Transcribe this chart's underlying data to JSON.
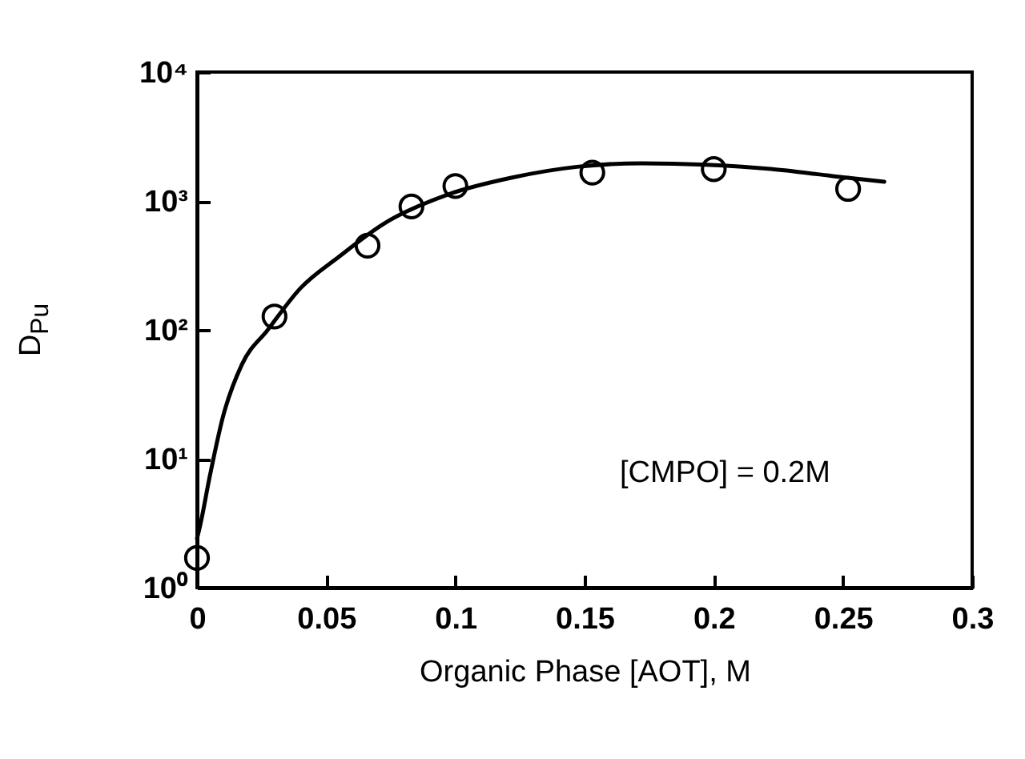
{
  "chart_data": {
    "type": "scatter",
    "xlabel": "Organic Phase [AOT], M",
    "ylabel": "D$_{Pu}$",
    "annotations": [
      "[CMPO] = 0.2M"
    ],
    "log": "y",
    "grid": false,
    "line_style": "solid",
    "xlim": [
      0,
      0.3
    ],
    "xticks": [
      0,
      0.05,
      0.1,
      0.15,
      0.2,
      0.25,
      0.3
    ],
    "ylim": [
      1,
      10000
    ],
    "yticks": [
      {
        "value": 1,
        "label": "10⁰"
      },
      {
        "value": 10,
        "label": "10¹"
      },
      {
        "value": 100,
        "label": "10²"
      },
      {
        "value": 1000,
        "label": "10³"
      },
      {
        "value": 10000,
        "label": "10⁴"
      }
    ],
    "series": [
      {
        "marker": "circle",
        "color": "#000000",
        "x": [
          0,
          0.03,
          0.066,
          0.083,
          0.1,
          0.153,
          0.2,
          0.252
        ],
        "values": [
          1.7,
          127,
          450,
          906,
          1306,
          1660,
          1766,
          1240
        ]
      },
      {
        "type": "line",
        "marker": "none",
        "color": "#000000",
        "x": [
          0.0,
          0.001,
          0.005,
          0.01,
          0.0174,
          0.0274,
          0.04,
          0.055,
          0.072,
          0.097,
          0.122,
          0.147,
          0.172,
          0.197,
          0.222,
          0.246,
          0.266
        ],
        "values": [
          2.4,
          2.9,
          7.4,
          21,
          54,
          100,
          210,
          370,
          660,
          1120,
          1520,
          1840,
          1960,
          1910,
          1770,
          1560,
          1410
        ]
      }
    ]
  }
}
